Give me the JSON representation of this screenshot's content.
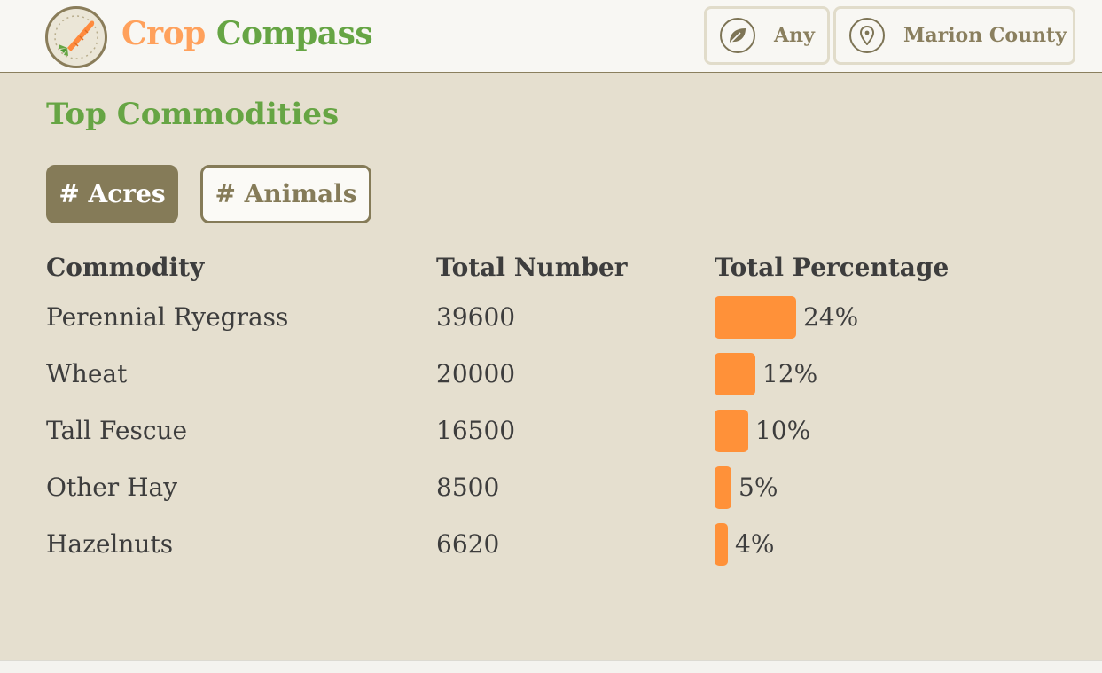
{
  "header": {
    "brand_part1": "Crop",
    "brand_part2": "Compass",
    "logo_icon": "carrot-compass-icon",
    "filters": [
      {
        "label": "Any",
        "icon": "leaf-icon"
      },
      {
        "label": "Marion County",
        "icon": "map-pin-icon"
      }
    ]
  },
  "main": {
    "title": "Top Commodities",
    "tabs": [
      {
        "label": "# Acres",
        "active": true
      },
      {
        "label": "# Animals",
        "active": false
      }
    ],
    "table": {
      "headers": [
        "Commodity",
        "Total Number",
        "Total Percentage"
      ],
      "rows": [
        {
          "commodity": "Perennial Ryegrass",
          "total": "39600",
          "percent": "24%",
          "fraction": 0.24
        },
        {
          "commodity": "Wheat",
          "total": "20000",
          "percent": "12%",
          "fraction": 0.12
        },
        {
          "commodity": "Tall Fescue",
          "total": "16500",
          "percent": "10%",
          "fraction": 0.1
        },
        {
          "commodity": "Other Hay",
          "total": "8500",
          "percent": "5%",
          "fraction": 0.05
        },
        {
          "commodity": "Hazelnuts",
          "total": "6620",
          "percent": "4%",
          "fraction": 0.04
        }
      ]
    }
  },
  "colors": {
    "brand_orange": "#ffa15c",
    "brand_green": "#66a544",
    "bar": "#ff9139",
    "tab_active": "#857b58",
    "panel_bg": "#e5dfcf"
  }
}
